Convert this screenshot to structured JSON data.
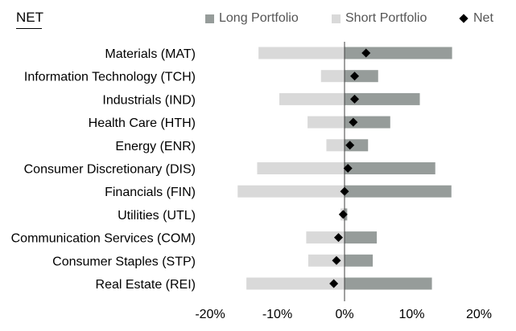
{
  "header": {
    "section_label": "NET"
  },
  "legend": {
    "long": {
      "label": "Long Portfolio",
      "color": "#969C9A"
    },
    "short": {
      "label": "Short Portfolio",
      "color": "#D9D9D9"
    },
    "net": {
      "label": "Net",
      "color": "#000000"
    }
  },
  "chart_data": {
    "type": "bar",
    "orientation": "horizontal",
    "categories": [
      "Materials (MAT)",
      "Information Technology (TCH)",
      "Industrials (IND)",
      "Health Care (HTH)",
      "Energy (ENR)",
      "Consumer Discretionary (DIS)",
      "Financials (FIN)",
      "Utilities (UTL)",
      "Communication Services (COM)",
      "Consumer Staples (STP)",
      "Real Estate (REI)"
    ],
    "series": [
      {
        "name": "Long Portfolio",
        "values": [
          16.0,
          5.0,
          11.2,
          6.8,
          3.5,
          13.5,
          15.9,
          0.4,
          4.8,
          4.2,
          13.0
        ]
      },
      {
        "name": "Short Portfolio",
        "values": [
          -12.8,
          -3.5,
          -9.7,
          -5.5,
          -2.7,
          -13.0,
          -15.9,
          -0.6,
          -5.7,
          -5.4,
          -14.6
        ]
      },
      {
        "name": "Net",
        "values": [
          3.2,
          1.5,
          1.5,
          1.3,
          0.8,
          0.5,
          0.0,
          -0.2,
          -0.9,
          -1.2,
          -1.6
        ]
      }
    ],
    "xlim": [
      -20,
      20
    ],
    "x_ticks": [
      "-20%",
      "-10%",
      "0%",
      "10%",
      "20%"
    ],
    "x_tick_values": [
      -20,
      -10,
      0,
      10,
      20
    ],
    "xlabel": "",
    "ylabel": "",
    "legend_position": "top",
    "grid": false
  }
}
